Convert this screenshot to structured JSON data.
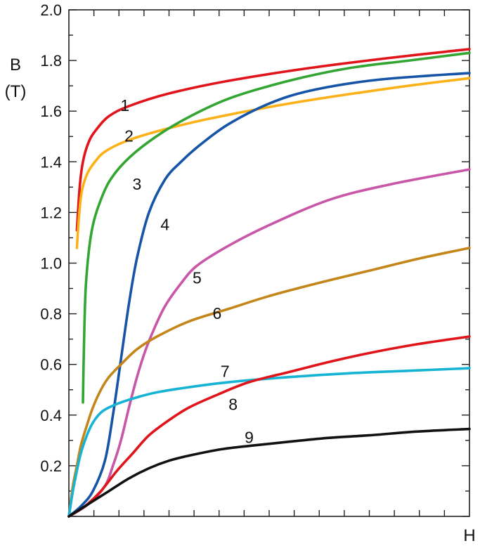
{
  "chart_data": {
    "type": "line",
    "title": "",
    "xlabel": "H",
    "ylabel": "B\n(T)",
    "ylabel_lines": [
      "B",
      "(T)"
    ],
    "x_tick_labels": "none (unlabeled minor ticks only)",
    "xlim": [
      0,
      100
    ],
    "ylim": [
      0,
      2.0
    ],
    "y_ticks": [
      "0.2",
      "0.4",
      "0.6",
      "0.8",
      "1.0",
      "1.2",
      "1.4",
      "1.6",
      "1.8",
      "2.0"
    ],
    "grid": false,
    "legend": "none (curves labeled inline with numbers)",
    "series": [
      {
        "name": "1",
        "color": "#e0141b",
        "x": [
          2.0,
          2.7,
          3.5,
          5,
          7,
          10,
          15,
          25,
          40,
          60,
          80,
          100
        ],
        "y": [
          1.13,
          1.3,
          1.4,
          1.48,
          1.53,
          1.58,
          1.62,
          1.67,
          1.72,
          1.77,
          1.81,
          1.845
        ]
      },
      {
        "name": "2",
        "color": "#fbb117",
        "x": [
          2.0,
          2.5,
          3.2,
          4.5,
          6.5,
          9,
          14,
          22,
          35,
          55,
          80,
          100
        ],
        "y": [
          1.06,
          1.18,
          1.28,
          1.35,
          1.4,
          1.44,
          1.48,
          1.52,
          1.57,
          1.63,
          1.69,
          1.73
        ]
      },
      {
        "name": "3",
        "color": "#33a532",
        "x": [
          3.5,
          3.8,
          4.2,
          5,
          6,
          7.5,
          10,
          14,
          20,
          28,
          40,
          55,
          70,
          85,
          100
        ],
        "y": [
          0.45,
          0.7,
          0.9,
          1.05,
          1.15,
          1.23,
          1.32,
          1.4,
          1.48,
          1.56,
          1.65,
          1.72,
          1.77,
          1.8,
          1.83
        ]
      },
      {
        "name": "4",
        "color": "#1554a6",
        "x": [
          0,
          3,
          6,
          9,
          11,
          13,
          15,
          17,
          20,
          24,
          28,
          33,
          40,
          50,
          60,
          75,
          90,
          100
        ],
        "y": [
          0,
          0.04,
          0.1,
          0.22,
          0.4,
          0.62,
          0.84,
          1.02,
          1.2,
          1.33,
          1.4,
          1.47,
          1.55,
          1.63,
          1.68,
          1.72,
          1.74,
          1.75
        ]
      },
      {
        "name": "5",
        "color": "#c957a7",
        "x": [
          0,
          5,
          9,
          11,
          13,
          15,
          17,
          19,
          21,
          24,
          28,
          32,
          40,
          50,
          65,
          80,
          100
        ],
        "y": [
          0,
          0.05,
          0.12,
          0.2,
          0.3,
          0.43,
          0.55,
          0.65,
          0.73,
          0.83,
          0.92,
          0.99,
          1.07,
          1.15,
          1.25,
          1.31,
          1.37
        ]
      },
      {
        "name": "6",
        "color": "#c3861a",
        "x": [
          0,
          1,
          2,
          3,
          4.5,
          6,
          8,
          10,
          13,
          17,
          22,
          30,
          40,
          50,
          62,
          75,
          88,
          100
        ],
        "y": [
          0,
          0.12,
          0.2,
          0.28,
          0.36,
          0.43,
          0.5,
          0.55,
          0.6,
          0.66,
          0.71,
          0.77,
          0.82,
          0.87,
          0.92,
          0.97,
          1.02,
          1.06
        ]
      },
      {
        "name": "7",
        "color": "#16b3d4",
        "x": [
          0,
          1,
          2,
          3,
          4.5,
          6,
          8,
          10,
          13,
          17,
          22,
          30,
          40,
          55,
          70,
          85,
          100
        ],
        "y": [
          0,
          0.1,
          0.18,
          0.25,
          0.32,
          0.37,
          0.41,
          0.43,
          0.45,
          0.47,
          0.49,
          0.51,
          0.53,
          0.55,
          0.565,
          0.575,
          0.585
        ]
      },
      {
        "name": "8",
        "color": "#e0141b",
        "x": [
          0,
          4,
          8,
          12,
          16,
          20,
          25,
          30,
          37,
          45,
          55,
          65,
          75,
          87,
          100
        ],
        "y": [
          0,
          0.04,
          0.1,
          0.18,
          0.25,
          0.32,
          0.38,
          0.43,
          0.48,
          0.53,
          0.57,
          0.61,
          0.645,
          0.68,
          0.71
        ]
      },
      {
        "name": "9",
        "color": "#111111",
        "x": [
          0,
          5,
          10,
          15,
          20,
          25,
          30,
          38,
          46,
          55,
          65,
          75,
          87,
          100
        ],
        "y": [
          0,
          0.05,
          0.1,
          0.15,
          0.19,
          0.22,
          0.24,
          0.265,
          0.28,
          0.295,
          0.31,
          0.32,
          0.335,
          0.345
        ]
      }
    ],
    "curve_labels": [
      {
        "text": "1",
        "x": 14,
        "y": 1.6
      },
      {
        "text": "2",
        "x": 15,
        "y": 1.48
      },
      {
        "text": "3",
        "x": 17,
        "y": 1.29
      },
      {
        "text": "4",
        "x": 24,
        "y": 1.13
      },
      {
        "text": "5",
        "x": 32,
        "y": 0.92
      },
      {
        "text": "6",
        "x": 37,
        "y": 0.78
      },
      {
        "text": "7",
        "x": 39,
        "y": 0.55
      },
      {
        "text": "8",
        "x": 41,
        "y": 0.42
      },
      {
        "text": "9",
        "x": 45,
        "y": 0.29
      }
    ]
  }
}
